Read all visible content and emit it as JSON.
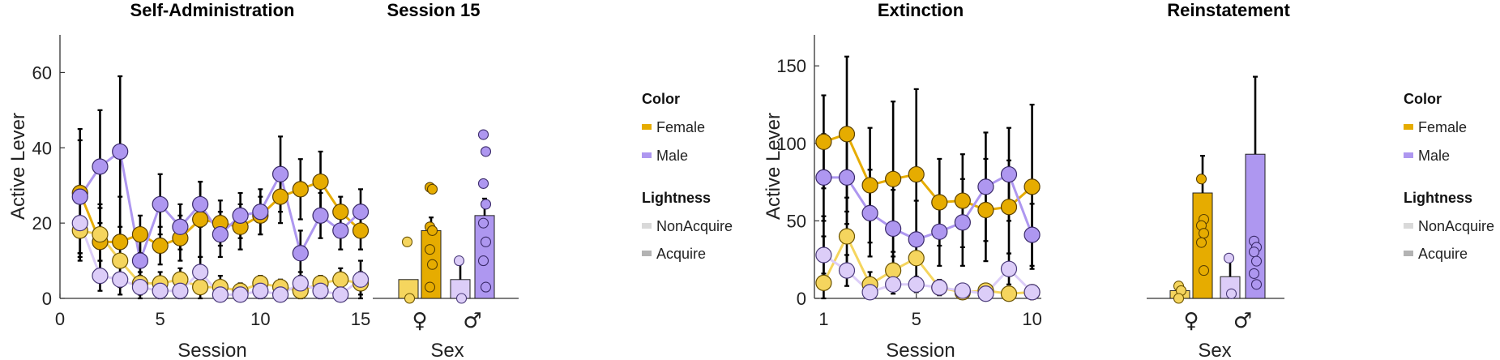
{
  "colors": {
    "female_acq": "#E6AC00",
    "female_non": "#F5D55E",
    "male_acq": "#AE97F0",
    "male_non": "#DCCDF8",
    "legend_non": "#D9D9D9",
    "legend_acq": "#B3B3B3"
  },
  "chart_data": [
    {
      "id": "self_admin",
      "type": "line",
      "title": "Self-Administration",
      "xlabel": "Session",
      "ylabel": "Active Lever",
      "xlim": [
        0,
        15
      ],
      "ylim": [
        0,
        70
      ],
      "xticks": [
        0,
        5,
        10,
        15
      ],
      "yticks": [
        0,
        20,
        40,
        60
      ],
      "x": [
        1,
        2,
        3,
        4,
        5,
        6,
        7,
        8,
        9,
        10,
        11,
        12,
        13,
        14,
        15
      ],
      "series": [
        {
          "group": "female_acq",
          "values": [
            28,
            15,
            15,
            17,
            14,
            16,
            21,
            20,
            19,
            22,
            27,
            29,
            31,
            23,
            18
          ],
          "err": [
            17,
            10,
            12,
            5,
            5,
            6,
            10,
            6,
            6,
            5,
            7,
            8,
            8,
            4,
            5
          ]
        },
        {
          "group": "male_acq",
          "values": [
            27,
            35,
            39,
            10,
            25,
            19,
            25,
            17,
            22,
            23,
            33,
            12,
            22,
            18,
            23
          ],
          "err": [
            15,
            15,
            20,
            7,
            8,
            6,
            6,
            6,
            6,
            6,
            10,
            6,
            6,
            5,
            6
          ]
        },
        {
          "group": "female_non",
          "values": [
            18,
            17,
            10,
            4,
            4,
            5,
            3,
            3,
            2,
            4,
            3,
            2,
            4,
            5,
            4
          ],
          "err": [
            8,
            7,
            6,
            3,
            3,
            3,
            4,
            3,
            2,
            2,
            2,
            2,
            2,
            3,
            3
          ]
        },
        {
          "group": "male_non",
          "values": [
            20,
            6,
            5,
            3,
            2,
            2,
            7,
            1,
            1,
            2,
            1,
            4,
            2,
            1,
            5
          ],
          "err": [
            8,
            4,
            4,
            3,
            2,
            2,
            4,
            1,
            1,
            2,
            1,
            3,
            2,
            1,
            5
          ]
        }
      ]
    },
    {
      "id": "session15",
      "type": "bar",
      "title": "Session 15",
      "xlabel": "Sex",
      "categories": [
        "♀",
        "♂"
      ],
      "ylim": [
        0,
        70
      ],
      "bars": [
        {
          "group": "female_non",
          "value": 5,
          "err": 0,
          "points": [
            15,
            0
          ]
        },
        {
          "group": "female_acq",
          "value": 18,
          "err": 3.5,
          "points": [
            29.5,
            29,
            19,
            18,
            13,
            9,
            3
          ]
        },
        {
          "group": "male_non",
          "value": 5,
          "err": 5,
          "points": [
            10,
            0
          ]
        },
        {
          "group": "male_acq",
          "value": 22,
          "err": 4.5,
          "points": [
            43.5,
            39,
            30.5,
            25,
            20,
            15,
            10,
            3
          ]
        }
      ]
    },
    {
      "id": "extinction",
      "type": "line",
      "title": "Extinction",
      "xlabel": "Session",
      "ylabel": "Active Lever",
      "xlim": [
        0.6,
        10.4
      ],
      "ylim": [
        0,
        170
      ],
      "xticks": [
        1,
        5,
        10
      ],
      "yticks": [
        0,
        50,
        100,
        150
      ],
      "x": [
        1,
        2,
        3,
        4,
        5,
        6,
        7,
        8,
        9,
        10
      ],
      "series": [
        {
          "group": "female_acq",
          "values": [
            101,
            106,
            73,
            77,
            80,
            62,
            63,
            57,
            59,
            72
          ],
          "err": [
            30,
            50,
            37,
            50,
            55,
            28,
            30,
            33,
            30,
            53
          ]
        },
        {
          "group": "male_acq",
          "values": [
            78,
            78,
            55,
            45,
            38,
            43,
            49,
            72,
            80,
            41
          ],
          "err": [
            28,
            30,
            28,
            25,
            25,
            22,
            28,
            35,
            30,
            20
          ]
        },
        {
          "group": "female_non",
          "values": [
            10,
            40,
            9,
            18,
            26,
            7,
            4,
            5,
            3,
            4
          ],
          "err": [
            43,
            25,
            8,
            12,
            15,
            5,
            3,
            3,
            2,
            3
          ]
        },
        {
          "group": "male_non",
          "values": [
            28,
            18,
            4,
            9,
            9,
            7,
            5,
            3,
            19,
            4
          ],
          "err": [
            12,
            10,
            3,
            6,
            5,
            4,
            3,
            3,
            10,
            3
          ]
        }
      ]
    },
    {
      "id": "reinstatement",
      "type": "bar",
      "title": "Reinstatement",
      "xlabel": "Sex",
      "categories": [
        "♀",
        "♂"
      ],
      "ylim": [
        0,
        170
      ],
      "bars": [
        {
          "group": "female_non",
          "value": 5,
          "err": 2,
          "points": [
            8,
            5,
            0
          ]
        },
        {
          "group": "female_acq",
          "value": 68,
          "err": 24,
          "points": [
            77,
            51,
            47,
            42,
            36,
            18
          ]
        },
        {
          "group": "male_non",
          "value": 14,
          "err": 12,
          "points": [
            26,
            3
          ]
        },
        {
          "group": "male_acq",
          "value": 93,
          "err": 50,
          "points": [
            37,
            33,
            30,
            24,
            16,
            9
          ]
        }
      ]
    }
  ],
  "legends": [
    {
      "color_title": "Color",
      "female": "Female",
      "male": "Male",
      "lightness_title": "Lightness",
      "non": "NonAcquire",
      "acq": "Acquire"
    },
    {
      "color_title": "Color",
      "female": "Female",
      "male": "Male",
      "lightness_title": "Lightness",
      "non": "NonAcquire",
      "acq": "Acquire"
    }
  ]
}
